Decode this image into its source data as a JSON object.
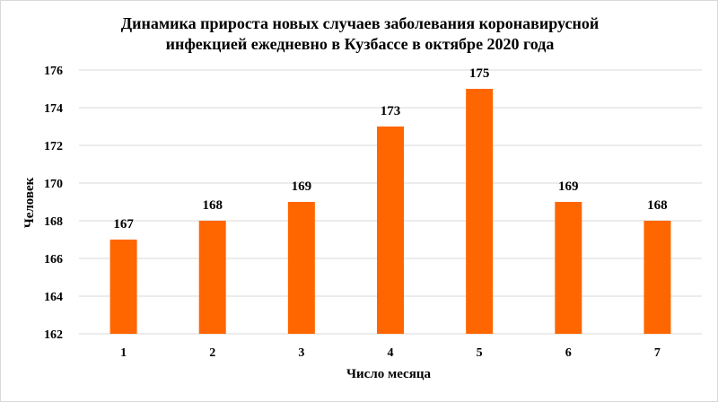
{
  "chart_data": {
    "type": "bar",
    "title_line1": "Динамика прироста новых случаев заболевания коронавирусной",
    "title_line2": "инфекцией ежедневно в Кузбассе в октябре 2020 года",
    "xlabel": "Число месяца",
    "ylabel": "Человек",
    "categories": [
      "1",
      "2",
      "3",
      "4",
      "5",
      "6",
      "7"
    ],
    "values": [
      167,
      168,
      169,
      173,
      175,
      169,
      168
    ],
    "ylim": [
      162,
      176
    ],
    "yticks": [
      162,
      164,
      166,
      168,
      170,
      172,
      174,
      176
    ],
    "grid": true,
    "legend": "none",
    "bar_color": "#ff6600",
    "grid_color": "#d9d9d9"
  }
}
